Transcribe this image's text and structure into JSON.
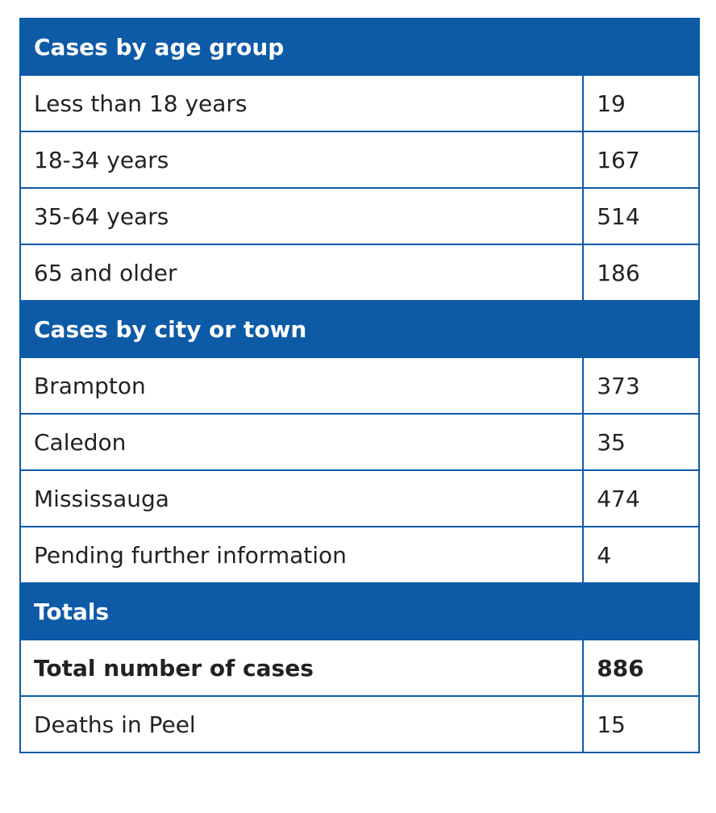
{
  "table": {
    "age_section": {
      "title": "Cases by age group",
      "rows": [
        {
          "label": "Less than 18 years",
          "value": "19"
        },
        {
          "label": "18-34 years",
          "value": "167"
        },
        {
          "label": "35-64 years",
          "value": "514"
        },
        {
          "label": "65 and older",
          "value": "186"
        }
      ]
    },
    "city_section": {
      "title": "Cases by city or town",
      "rows": [
        {
          "label": "Brampton",
          "value": "373"
        },
        {
          "label": "Caledon",
          "value": "35"
        },
        {
          "label": "Mississauga",
          "value": "474"
        },
        {
          "label": "Pending further information",
          "value": "4"
        }
      ]
    },
    "totals_section": {
      "title": "Totals",
      "rows": [
        {
          "label": "Total number of cases",
          "value": "886"
        },
        {
          "label": "Deaths in Peel",
          "value": "15"
        }
      ]
    }
  },
  "colors": {
    "header_bg": "#0d5aa7",
    "header_text": "#ffffff",
    "border": "#0d5aa7",
    "body_text": "#222222"
  }
}
